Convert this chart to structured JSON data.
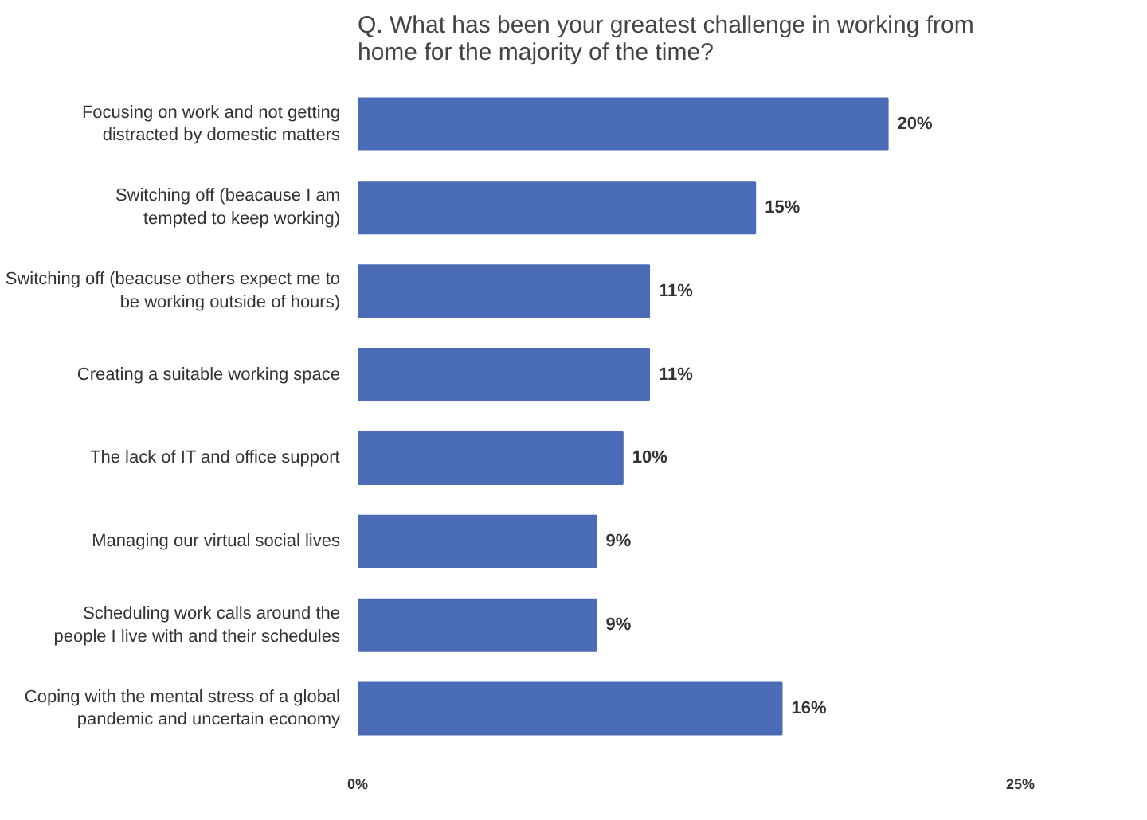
{
  "chart_data": {
    "type": "bar",
    "orientation": "horizontal",
    "title": "Q. What has been your greatest challenge in working from\nhome for the majority of the time?",
    "categories": [
      "Focusing on work and not getting\ndistracted by domestic matters",
      "Switching off (beacause I am\ntempted to keep working)",
      "Switching off (beacuse others expect me to\nbe working outside of hours)",
      "Creating a suitable working space",
      "The lack of IT and office support",
      "Managing our virtual social lives",
      "Scheduling work calls around the\npeople I live with and their schedules",
      "Coping with the mental stress of a global\npandemic and uncertain economy"
    ],
    "values": [
      20,
      15,
      11,
      11,
      10,
      9,
      9,
      16
    ],
    "value_labels": [
      "20%",
      "15%",
      "11%",
      "11%",
      "10%",
      "9%",
      "9%",
      "16%"
    ],
    "color": "#4a6bb5",
    "xlim": [
      0,
      25
    ],
    "xticks": [
      {
        "value": 0,
        "label": "0%"
      },
      {
        "value": 25,
        "label": "25%"
      }
    ],
    "grid": false
  }
}
